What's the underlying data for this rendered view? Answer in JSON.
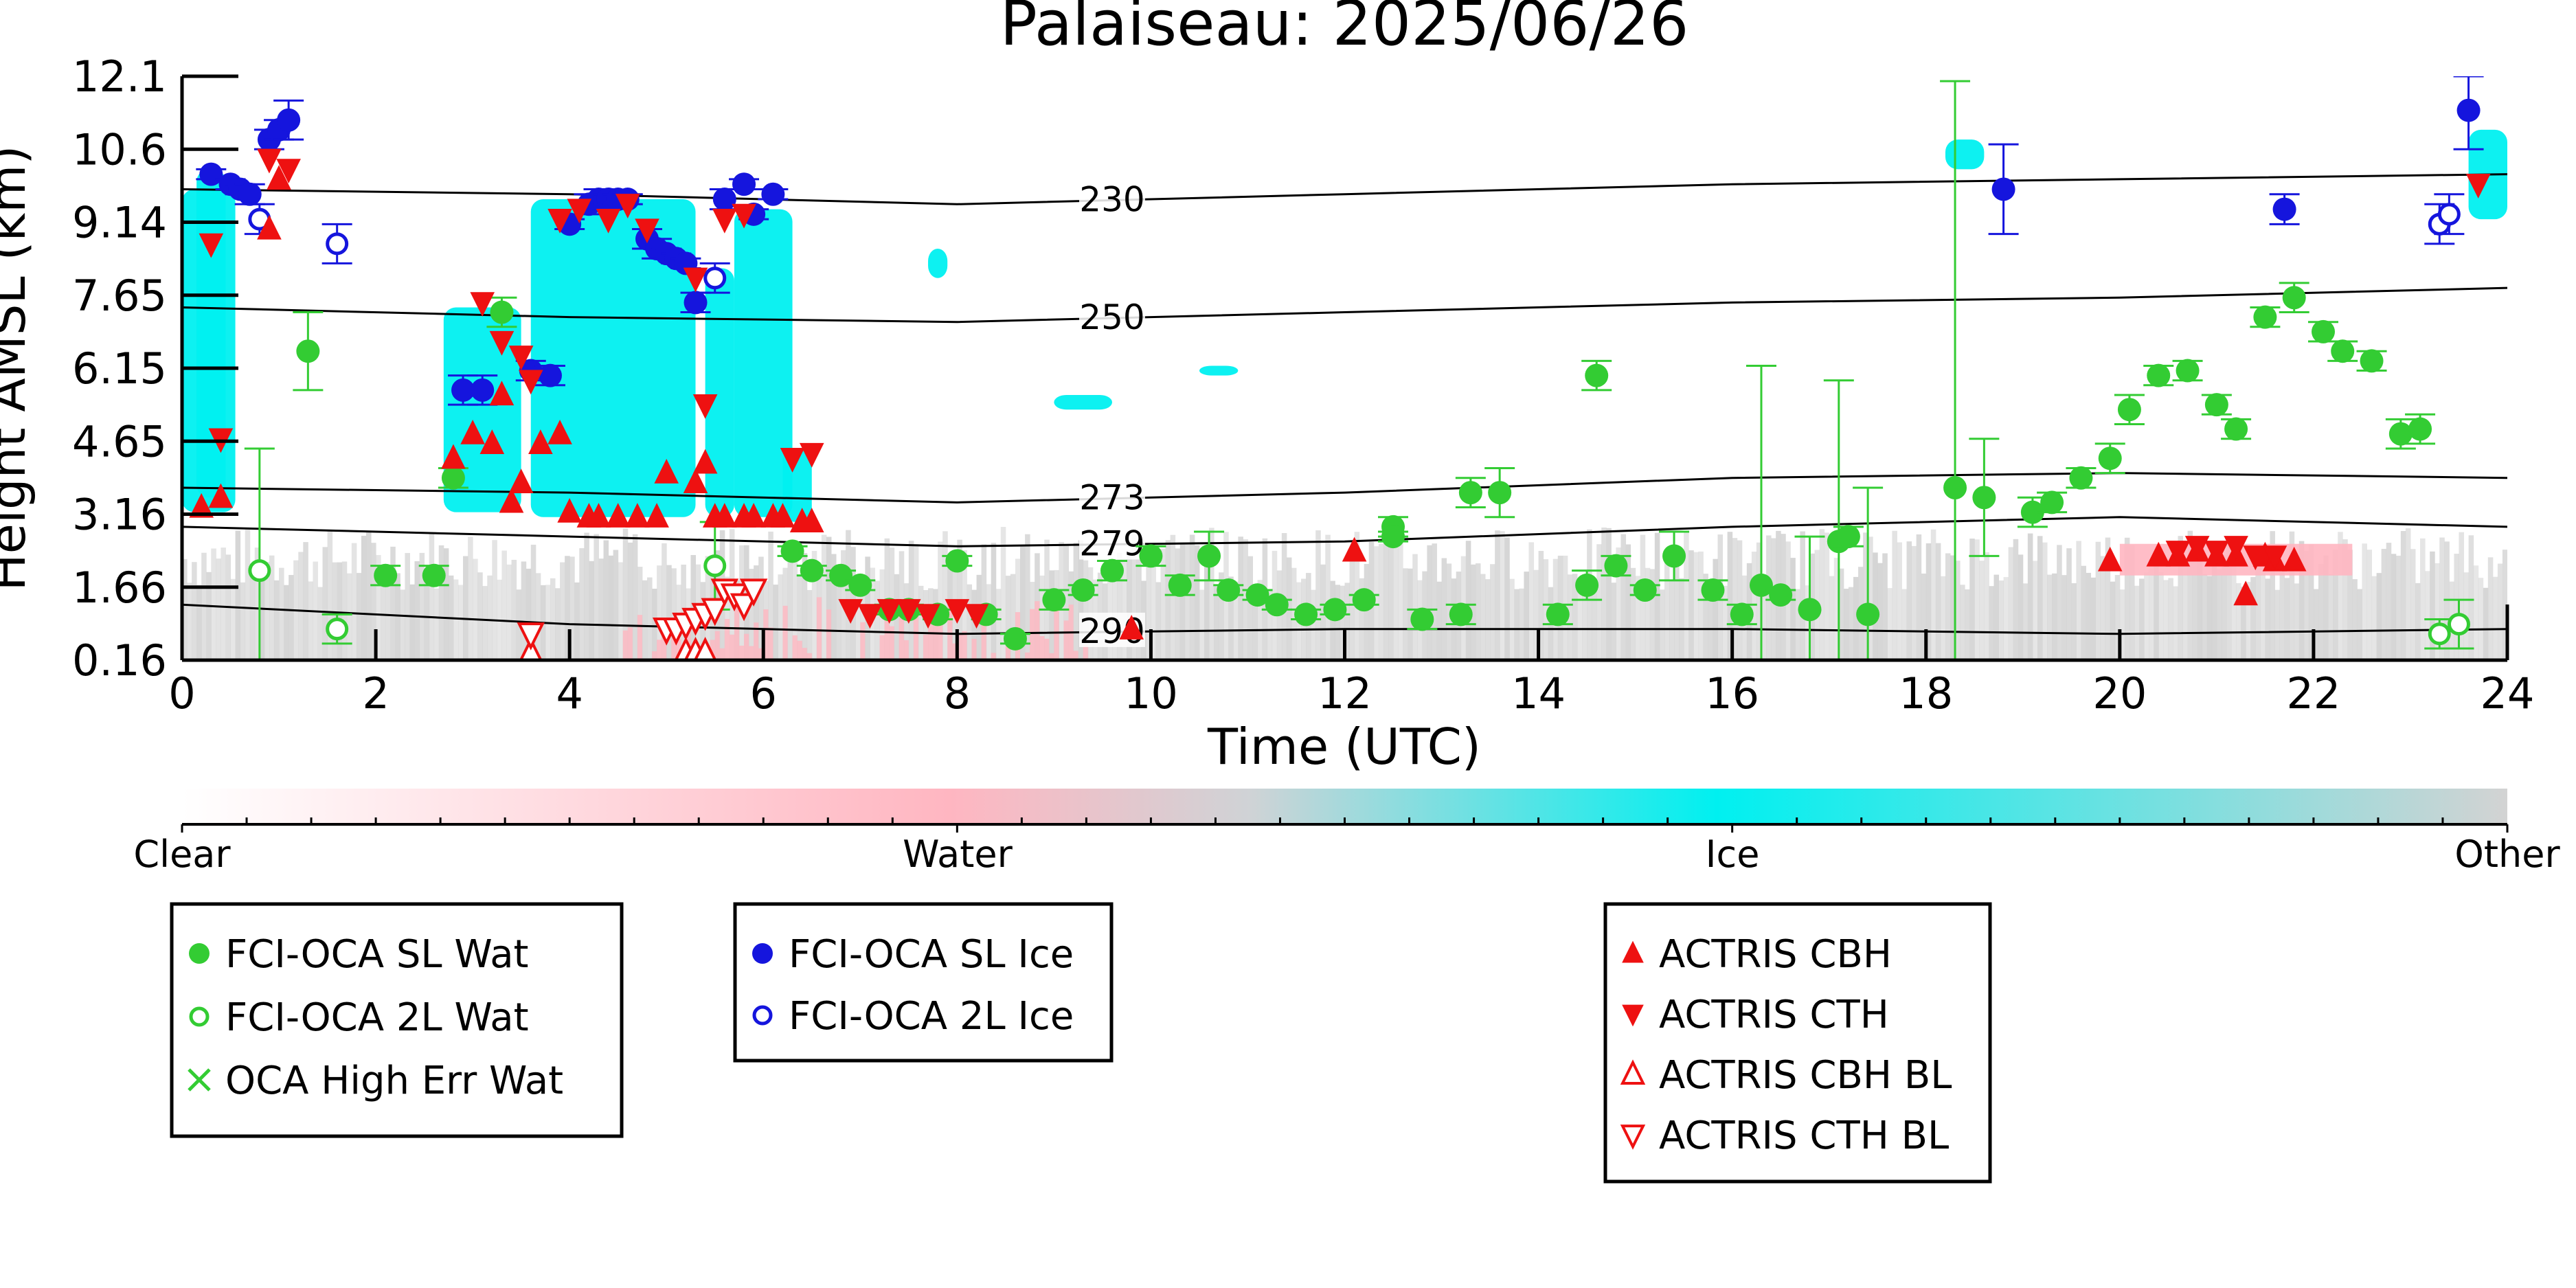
{
  "chart_data": {
    "type": "scatter",
    "title": "Palaiseau: 2025/06/26",
    "xlabel": "Time (UTC)",
    "ylabel": "Height AMSL (km)",
    "xlim": [
      0,
      24
    ],
    "ylim": [
      0.16,
      12.1
    ],
    "x_ticks": [
      "0",
      "2",
      "4",
      "6",
      "8",
      "10",
      "12",
      "14",
      "16",
      "18",
      "20",
      "22",
      "24"
    ],
    "y_ticks": [
      "0.16",
      "1.66",
      "3.16",
      "4.65",
      "6.15",
      "7.65",
      "9.14",
      "10.6",
      "12.1"
    ],
    "y_tick_values": [
      0.16,
      1.66,
      3.16,
      4.65,
      6.15,
      7.65,
      9.14,
      10.6,
      12.1
    ],
    "colorbar": {
      "labels": [
        "Clear",
        "Water",
        "Ice",
        "Other"
      ],
      "colors": [
        "#ffffff",
        "#ffb6c1",
        "#00f0f0",
        "#d3d3d3"
      ]
    },
    "isotherms": [
      {
        "label": "230",
        "x": [
          0,
          4,
          8,
          12,
          16,
          20,
          24
        ],
        "y": [
          9.8,
          9.7,
          9.5,
          9.7,
          9.9,
          10.0,
          10.1
        ]
      },
      {
        "label": "250",
        "x": [
          0,
          4,
          8,
          12,
          16,
          20,
          24
        ],
        "y": [
          7.4,
          7.2,
          7.1,
          7.3,
          7.5,
          7.6,
          7.8
        ]
      },
      {
        "label": "273",
        "x": [
          0,
          4,
          8,
          12,
          16,
          20,
          24
        ],
        "y": [
          3.7,
          3.6,
          3.4,
          3.6,
          3.9,
          4.0,
          3.9
        ]
      },
      {
        "label": "279",
        "x": [
          0,
          4,
          8,
          12,
          16,
          20,
          24
        ],
        "y": [
          2.9,
          2.7,
          2.5,
          2.6,
          2.9,
          3.1,
          2.9
        ]
      },
      {
        "label": "290",
        "x": [
          0,
          4,
          8,
          12,
          16,
          20,
          24
        ],
        "y": [
          1.3,
          0.9,
          0.7,
          0.8,
          0.8,
          0.7,
          0.8
        ]
      }
    ],
    "series": [
      {
        "name": "FCI-OCA SL Wat",
        "marker": "circle-filled",
        "color": "#33cc33",
        "x": [
          1.3,
          2.8,
          3.3,
          2.1,
          2.6,
          6.3,
          6.5,
          6.8,
          7.0,
          7.3,
          7.5,
          7.8,
          8.0,
          8.3,
          8.6,
          9.0,
          9.3,
          9.6,
          10.0,
          10.3,
          10.6,
          10.8,
          11.1,
          11.3,
          11.6,
          11.9,
          12.2,
          12.5,
          12.8,
          13.2,
          13.6,
          14.2,
          14.5,
          14.8,
          15.1,
          15.4,
          15.8,
          16.1,
          16.3,
          16.5,
          16.8,
          17.1,
          17.4,
          18.3,
          18.6,
          19.1,
          19.3,
          19.6,
          19.9,
          20.1,
          20.4,
          20.7,
          21.0,
          21.2,
          21.5,
          21.8,
          22.1,
          22.3,
          22.6,
          22.9,
          23.1,
          13.3,
          14.6,
          17.2,
          12.5
        ],
        "y": [
          6.5,
          3.9,
          7.3,
          1.9,
          1.9,
          2.4,
          2.0,
          1.9,
          1.7,
          1.2,
          1.2,
          1.1,
          2.2,
          1.1,
          0.6,
          1.4,
          1.6,
          2.0,
          2.3,
          1.7,
          2.3,
          1.6,
          1.5,
          1.3,
          1.1,
          1.2,
          1.4,
          2.9,
          1.0,
          1.1,
          3.6,
          1.1,
          1.7,
          2.1,
          1.6,
          2.3,
          1.6,
          1.1,
          1.7,
          1.5,
          1.2,
          2.6,
          1.1,
          3.7,
          3.5,
          3.2,
          3.4,
          3.9,
          4.3,
          5.3,
          6.0,
          6.1,
          5.4,
          4.9,
          7.2,
          7.6,
          6.9,
          6.5,
          6.3,
          4.8,
          4.9,
          3.6,
          6.0,
          2.7,
          2.7
        ],
        "err": [
          0.8,
          0.2,
          0.3,
          0.2,
          0.2,
          0.1,
          0.1,
          0.1,
          0.1,
          0.1,
          0.1,
          0.1,
          0.1,
          0.1,
          0.1,
          0.2,
          0.1,
          0.2,
          0.2,
          0.2,
          0.5,
          0.1,
          0.1,
          0.1,
          0.1,
          0.1,
          0.1,
          0.2,
          0.2,
          0.2,
          0.5,
          0.2,
          0.3,
          0.2,
          0.1,
          0.5,
          0.2,
          0.2,
          4.5,
          0.1,
          1.5,
          3.3,
          2.6,
          8.3,
          1.2,
          0.3,
          0.2,
          0.2,
          0.3,
          0.3,
          0.2,
          0.2,
          0.2,
          0.2,
          0.2,
          0.3,
          0.2,
          0.2,
          0.2,
          0.3,
          0.3,
          0.3,
          0.3,
          0.2,
          0.1
        ]
      },
      {
        "name": "FCI-OCA 2L Wat",
        "marker": "circle-open",
        "color": "#33cc33",
        "x": [
          0.8,
          1.6,
          5.5,
          23.3,
          23.5
        ],
        "y": [
          2.0,
          0.8,
          2.1,
          0.7,
          0.9
        ],
        "err": [
          2.5,
          0.3,
          0.9,
          0.3,
          0.5
        ]
      },
      {
        "name": "OCA High Err Wat",
        "marker": "x",
        "color": "#33cc33",
        "x": [],
        "y": [],
        "err": []
      },
      {
        "name": "FCI-OCA SL Ice",
        "marker": "circle-filled",
        "color": "#1515dd",
        "x": [
          0.3,
          0.5,
          0.6,
          0.7,
          0.9,
          1.0,
          1.1,
          2.9,
          3.1,
          3.6,
          3.8,
          4.0,
          4.2,
          4.3,
          4.4,
          4.5,
          4.6,
          4.8,
          4.9,
          5.0,
          5.1,
          5.2,
          5.3,
          5.6,
          5.8,
          5.9,
          6.1,
          18.8,
          21.7,
          23.6
        ],
        "y": [
          10.1,
          9.9,
          9.8,
          9.7,
          10.8,
          11.0,
          11.2,
          5.7,
          5.7,
          6.1,
          6.0,
          9.1,
          9.5,
          9.6,
          9.6,
          9.6,
          9.6,
          8.8,
          8.6,
          8.5,
          8.4,
          8.3,
          7.5,
          9.6,
          9.9,
          9.3,
          9.7,
          9.8,
          9.4,
          11.4
        ],
        "err": [
          0.1,
          0.1,
          0.1,
          0.2,
          0.2,
          0.2,
          0.4,
          0.3,
          0.3,
          0.2,
          0.2,
          0.1,
          0.2,
          0.2,
          0.1,
          0.1,
          0.1,
          0.2,
          0.2,
          0.1,
          0.1,
          0.1,
          0.2,
          0.2,
          0.1,
          0.1,
          0.1,
          0.9,
          0.3,
          0.8
        ]
      },
      {
        "name": "FCI-OCA 2L Ice",
        "marker": "circle-open",
        "color": "#1515dd",
        "x": [
          0.8,
          1.6,
          5.5,
          23.3,
          23.4
        ],
        "y": [
          9.2,
          8.7,
          8.0,
          9.1,
          9.3
        ],
        "err": [
          0.3,
          0.4,
          0.3,
          0.4,
          0.4
        ]
      },
      {
        "name": "ACTRIS CBH",
        "marker": "triangle-up-filled",
        "color": "#ee1111",
        "x": [
          0.2,
          0.4,
          0.9,
          1.0,
          2.8,
          3.0,
          3.2,
          3.3,
          3.4,
          3.5,
          3.7,
          3.9,
          4.0,
          4.2,
          4.3,
          4.5,
          4.7,
          4.9,
          5.0,
          5.3,
          5.4,
          5.5,
          5.6,
          5.8,
          5.9,
          6.1,
          6.2,
          6.4,
          6.5,
          9.8,
          12.1,
          19.9,
          20.4,
          20.6,
          20.8,
          21.0,
          21.2,
          21.3,
          21.5,
          21.6,
          21.8
        ],
        "y": [
          3.3,
          3.5,
          9.0,
          10.0,
          4.3,
          4.8,
          4.6,
          5.6,
          3.4,
          3.8,
          4.6,
          4.8,
          3.2,
          3.1,
          3.1,
          3.1,
          3.1,
          3.1,
          4.0,
          3.8,
          4.2,
          3.1,
          3.1,
          3.1,
          3.1,
          3.1,
          3.1,
          3.0,
          3.0,
          0.8,
          2.4,
          2.2,
          2.3,
          2.3,
          2.4,
          2.3,
          2.3,
          1.5,
          2.3,
          2.2,
          2.2
        ]
      },
      {
        "name": "ACTRIS CTH",
        "marker": "triangle-down-filled",
        "color": "#ee1111",
        "x": [
          0.3,
          0.4,
          0.9,
          1.1,
          3.1,
          3.3,
          3.5,
          3.6,
          3.9,
          4.1,
          4.4,
          4.6,
          4.8,
          5.3,
          5.4,
          5.6,
          5.8,
          6.3,
          6.5,
          6.9,
          7.1,
          7.3,
          7.5,
          7.7,
          8.0,
          8.2,
          20.6,
          20.8,
          21.0,
          21.2,
          21.4,
          21.6,
          23.7
        ],
        "y": [
          8.7,
          4.7,
          10.4,
          10.2,
          7.5,
          6.7,
          6.4,
          5.9,
          9.2,
          9.4,
          9.2,
          9.5,
          9.0,
          8.0,
          5.4,
          9.2,
          9.3,
          4.3,
          4.4,
          1.2,
          1.1,
          1.2,
          1.2,
          1.1,
          1.2,
          1.1,
          2.4,
          2.5,
          2.4,
          2.5,
          2.3,
          2.3,
          9.9
        ]
      },
      {
        "name": "ACTRIS CBH BL",
        "marker": "triangle-up-open",
        "color": "#ee1111",
        "x": [
          3.6,
          5.2,
          5.3,
          5.4
        ],
        "y": [
          0.3,
          0.3,
          0.3,
          0.3
        ]
      },
      {
        "name": "ACTRIS CTH BL",
        "marker": "triangle-down-open",
        "color": "#ee1111",
        "x": [
          3.6,
          5.0,
          5.1,
          5.2,
          5.3,
          5.4,
          5.5,
          5.6,
          5.7,
          5.8,
          5.9
        ],
        "y": [
          0.7,
          0.8,
          0.8,
          0.9,
          1.0,
          1.1,
          1.2,
          1.6,
          1.5,
          1.3,
          1.6
        ]
      }
    ],
    "legend": {
      "boxes": [
        [
          "FCI-OCA SL Wat",
          "FCI-OCA 2L Wat",
          "OCA High Err Wat"
        ],
        [
          "FCI-OCA SL Ice",
          "FCI-OCA 2L Ice"
        ],
        [
          "ACTRIS CBH",
          "ACTRIS CTH",
          "ACTRIS CBH BL",
          "ACTRIS CTH BL"
        ]
      ],
      "placement": "bottom"
    }
  }
}
